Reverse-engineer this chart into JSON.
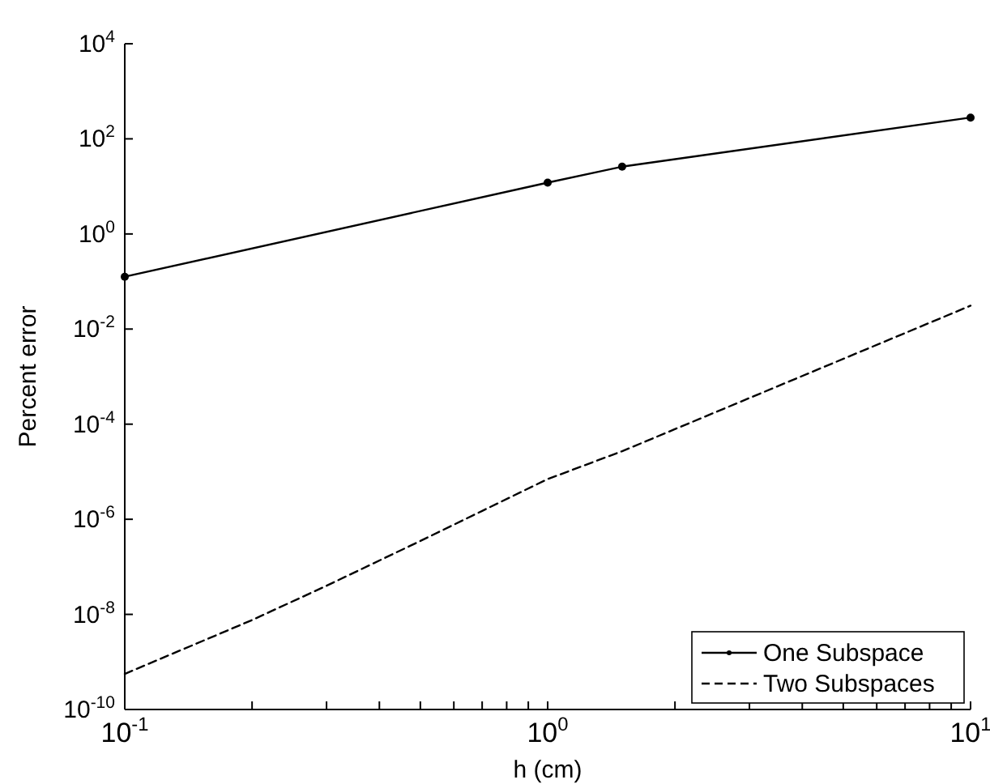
{
  "chart_data": {
    "type": "line",
    "xlabel": "h (cm)",
    "ylabel": "Percent error",
    "log": "xy",
    "xlim": [
      0.1,
      10
    ],
    "ylim": [
      1e-10,
      10000
    ],
    "xticks": [
      {
        "value": 0.1,
        "label": "10$^{-1}$"
      },
      {
        "value": 0.2,
        "label": null
      },
      {
        "value": 0.3,
        "label": null
      },
      {
        "value": 0.4,
        "label": null
      },
      {
        "value": 0.5,
        "label": null
      },
      {
        "value": 0.6,
        "label": null
      },
      {
        "value": 0.7,
        "label": null
      },
      {
        "value": 0.8,
        "label": null
      },
      {
        "value": 0.9,
        "label": null
      },
      {
        "value": 1,
        "label": "10$^{0}$"
      },
      {
        "value": 2,
        "label": null
      },
      {
        "value": 3,
        "label": null
      },
      {
        "value": 4,
        "label": null
      },
      {
        "value": 5,
        "label": null
      },
      {
        "value": 6,
        "label": null
      },
      {
        "value": 7,
        "label": null
      },
      {
        "value": 8,
        "label": null
      },
      {
        "value": 9,
        "label": null
      },
      {
        "value": 10,
        "label": "10$^{1}$"
      }
    ],
    "yticks": [
      {
        "value": 1e-10,
        "label": "10$^{-10}$"
      },
      {
        "value": 1e-08,
        "label": "10$^{-8}$"
      },
      {
        "value": 1e-06,
        "label": "10$^{-6}$"
      },
      {
        "value": 0.0001,
        "label": "10$^{-4}$"
      },
      {
        "value": 0.01,
        "label": "10$^{-2}$"
      },
      {
        "value": 1,
        "label": "10$^{0}$"
      },
      {
        "value": 100,
        "label": "10$^{2}$"
      },
      {
        "value": 10000,
        "label": "10$^{4}$"
      }
    ],
    "legend": "bottom right",
    "grid": false,
    "series": [
      {
        "name": "One Subspace",
        "color": "#000000",
        "line_style": "solid",
        "marker": "circle",
        "x": [
          0.1,
          1,
          1.5,
          10
        ],
        "values": [
          0.126,
          12,
          26,
          280
        ]
      },
      {
        "name": "Two Subspaces",
        "color": "#000000",
        "line_style": "dashed",
        "marker": "none",
        "x": [
          0.1,
          0.2,
          0.3,
          0.5,
          0.7,
          1,
          1.5,
          10
        ],
        "values": [
          5.6e-10,
          7.6e-09,
          4e-08,
          3.5e-07,
          1.5e-06,
          7e-06,
          2.7e-05,
          0.031
        ]
      }
    ]
  }
}
